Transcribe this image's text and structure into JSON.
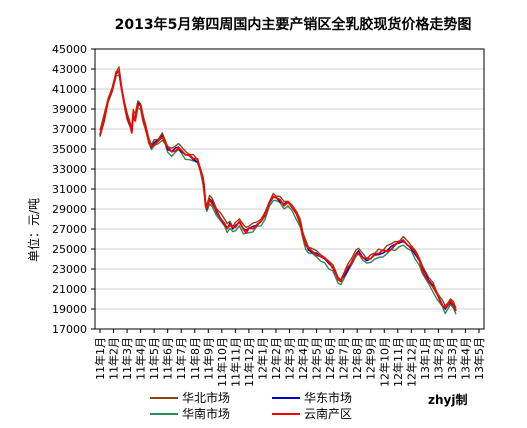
{
  "chart_data": {
    "type": "line",
    "title": "2013年5月第四周国内主要产销区全乳胶现货价格走势图",
    "xlabel": "",
    "ylabel": "单位：元/吨",
    "ylim": [
      17000,
      45000
    ],
    "yticks": [
      17000,
      19000,
      21000,
      23000,
      25000,
      27000,
      29000,
      31000,
      33000,
      35000,
      37000,
      39000,
      41000,
      43000,
      45000
    ],
    "grid": true,
    "legend_position": "bottom",
    "watermark": "zhyj制",
    "categories": [
      "11年1月",
      "11年2月",
      "11年3月",
      "11年4月",
      "11年5月",
      "11年6月",
      "11年7月",
      "11年8月",
      "11年9月",
      "11年10月",
      "11年11月",
      "11年12月",
      "12年1月",
      "12年2月",
      "12年3月",
      "12年4月",
      "12年5月",
      "12年6月",
      "12年7月",
      "12年8月",
      "12年9月",
      "12年10月",
      "12年11月",
      "12年12月",
      "13年1月",
      "13年2月",
      "13年3月",
      "13年4月",
      "13年5月"
    ],
    "series": [
      {
        "name": "华北市场",
        "color": "#8B4513",
        "offset": 300
      },
      {
        "name": "华东市场",
        "color": "#0000CC",
        "offset": 0
      },
      {
        "name": "华南市场",
        "color": "#2E8B57",
        "offset": -350
      },
      {
        "name": "云南产区",
        "color": "#FF0000",
        "offset": 0
      }
    ],
    "base_points": [
      [
        0.0,
        36500
      ],
      [
        0.3,
        38000
      ],
      [
        0.6,
        39800
      ],
      [
        0.9,
        41000
      ],
      [
        1.2,
        42500
      ],
      [
        1.4,
        42800
      ],
      [
        1.6,
        41000
      ],
      [
        1.8,
        39500
      ],
      [
        2.0,
        38200
      ],
      [
        2.2,
        37500
      ],
      [
        2.35,
        36800
      ],
      [
        2.45,
        38500
      ],
      [
        2.6,
        38000
      ],
      [
        2.8,
        39500
      ],
      [
        3.0,
        39300
      ],
      [
        3.2,
        38000
      ],
      [
        3.4,
        37000
      ],
      [
        3.6,
        35800
      ],
      [
        3.8,
        35200
      ],
      [
        4.0,
        35500
      ],
      [
        4.3,
        35800
      ],
      [
        4.6,
        36200
      ],
      [
        4.8,
        35800
      ],
      [
        5.0,
        35000
      ],
      [
        5.3,
        34800
      ],
      [
        5.6,
        35000
      ],
      [
        5.8,
        35200
      ],
      [
        6.0,
        34900
      ],
      [
        6.3,
        34400
      ],
      [
        6.6,
        34200
      ],
      [
        6.9,
        34000
      ],
      [
        7.2,
        33800
      ],
      [
        7.4,
        33000
      ],
      [
        7.6,
        32000
      ],
      [
        7.7,
        31000
      ],
      [
        7.8,
        29500
      ],
      [
        7.9,
        29000
      ],
      [
        8.1,
        30000
      ],
      [
        8.3,
        29600
      ],
      [
        8.6,
        28800
      ],
      [
        8.9,
        28200
      ],
      [
        9.2,
        27600
      ],
      [
        9.4,
        27200
      ],
      [
        9.6,
        27400
      ],
      [
        9.8,
        27000
      ],
      [
        10.0,
        27200
      ],
      [
        10.3,
        27600
      ],
      [
        10.6,
        27000
      ],
      [
        10.8,
        26800
      ],
      [
        11.0,
        27000
      ],
      [
        11.3,
        27200
      ],
      [
        11.6,
        27500
      ],
      [
        11.9,
        27800
      ],
      [
        12.2,
        28400
      ],
      [
        12.5,
        29500
      ],
      [
        12.8,
        30300
      ],
      [
        13.0,
        30000
      ],
      [
        13.3,
        29800
      ],
      [
        13.6,
        29500
      ],
      [
        13.9,
        29600
      ],
      [
        14.2,
        29000
      ],
      [
        14.5,
        28400
      ],
      [
        14.8,
        27500
      ],
      [
        15.0,
        26500
      ],
      [
        15.2,
        25500
      ],
      [
        15.4,
        25000
      ],
      [
        15.7,
        24800
      ],
      [
        16.0,
        24400
      ],
      [
        16.3,
        24200
      ],
      [
        16.6,
        24000
      ],
      [
        16.9,
        23500
      ],
      [
        17.2,
        23000
      ],
      [
        17.4,
        22500
      ],
      [
        17.6,
        22000
      ],
      [
        17.8,
        21800
      ],
      [
        18.0,
        22300
      ],
      [
        18.3,
        23000
      ],
      [
        18.6,
        23800
      ],
      [
        18.9,
        24500
      ],
      [
        19.1,
        24700
      ],
      [
        19.4,
        24300
      ],
      [
        19.7,
        23900
      ],
      [
        20.0,
        24100
      ],
      [
        20.3,
        24300
      ],
      [
        20.6,
        24500
      ],
      [
        20.9,
        24700
      ],
      [
        21.2,
        24900
      ],
      [
        21.5,
        25100
      ],
      [
        21.8,
        25400
      ],
      [
        22.1,
        25600
      ],
      [
        22.4,
        25800
      ],
      [
        22.7,
        25500
      ],
      [
        23.0,
        25000
      ],
      [
        23.3,
        24500
      ],
      [
        23.6,
        23800
      ],
      [
        23.8,
        23000
      ],
      [
        24.0,
        22500
      ],
      [
        24.3,
        21800
      ],
      [
        24.6,
        21200
      ],
      [
        24.9,
        20500
      ],
      [
        25.1,
        20000
      ],
      [
        25.3,
        19500
      ],
      [
        25.5,
        19000
      ],
      [
        25.7,
        19400
      ],
      [
        25.9,
        19800
      ],
      [
        26.1,
        19500
      ],
      [
        26.3,
        18700
      ]
    ]
  }
}
